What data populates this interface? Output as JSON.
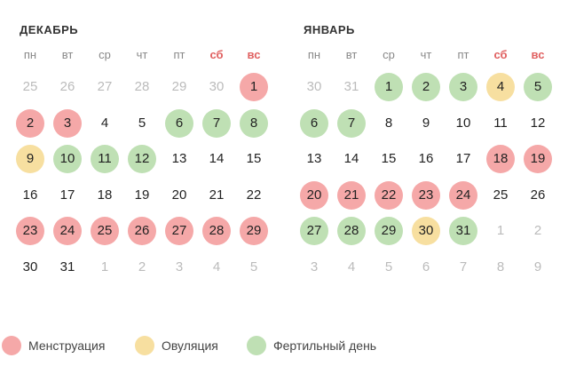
{
  "colors": {
    "menstruation": "#f5a8a8",
    "ovulation": "#f7dfa0",
    "fertile": "#bfe0b4",
    "weekend_text": "#e06060",
    "muted_text": "#bbbbbb"
  },
  "weekdays": [
    "пн",
    "вт",
    "ср",
    "чт",
    "пт",
    "сб",
    "вс"
  ],
  "months": [
    {
      "title": "ДЕКАБРЬ",
      "weeks": [
        [
          {
            "d": "25",
            "m": true
          },
          {
            "d": "26",
            "m": true
          },
          {
            "d": "27",
            "m": true
          },
          {
            "d": "28",
            "m": true
          },
          {
            "d": "29",
            "m": true
          },
          {
            "d": "30",
            "m": true
          },
          {
            "d": "1",
            "s": "menstruation"
          }
        ],
        [
          {
            "d": "2",
            "s": "menstruation"
          },
          {
            "d": "3",
            "s": "menstruation"
          },
          {
            "d": "4"
          },
          {
            "d": "5"
          },
          {
            "d": "6",
            "s": "fertile"
          },
          {
            "d": "7",
            "s": "fertile"
          },
          {
            "d": "8",
            "s": "fertile"
          }
        ],
        [
          {
            "d": "9",
            "s": "ovulation"
          },
          {
            "d": "10",
            "s": "fertile"
          },
          {
            "d": "11",
            "s": "fertile"
          },
          {
            "d": "12",
            "s": "fertile"
          },
          {
            "d": "13"
          },
          {
            "d": "14"
          },
          {
            "d": "15"
          }
        ],
        [
          {
            "d": "16"
          },
          {
            "d": "17"
          },
          {
            "d": "18"
          },
          {
            "d": "19"
          },
          {
            "d": "20"
          },
          {
            "d": "21"
          },
          {
            "d": "22"
          }
        ],
        [
          {
            "d": "23",
            "s": "menstruation"
          },
          {
            "d": "24",
            "s": "menstruation"
          },
          {
            "d": "25",
            "s": "menstruation"
          },
          {
            "d": "26",
            "s": "menstruation"
          },
          {
            "d": "27",
            "s": "menstruation"
          },
          {
            "d": "28",
            "s": "menstruation"
          },
          {
            "d": "29",
            "s": "menstruation"
          }
        ],
        [
          {
            "d": "30"
          },
          {
            "d": "31"
          },
          {
            "d": "1",
            "m": true
          },
          {
            "d": "2",
            "m": true
          },
          {
            "d": "3",
            "m": true
          },
          {
            "d": "4",
            "m": true
          },
          {
            "d": "5",
            "m": true
          }
        ]
      ]
    },
    {
      "title": "ЯНВАРЬ",
      "weeks": [
        [
          {
            "d": "30",
            "m": true
          },
          {
            "d": "31",
            "m": true
          },
          {
            "d": "1",
            "s": "fertile"
          },
          {
            "d": "2",
            "s": "fertile"
          },
          {
            "d": "3",
            "s": "fertile"
          },
          {
            "d": "4",
            "s": "ovulation"
          },
          {
            "d": "5",
            "s": "fertile"
          }
        ],
        [
          {
            "d": "6",
            "s": "fertile"
          },
          {
            "d": "7",
            "s": "fertile"
          },
          {
            "d": "8"
          },
          {
            "d": "9"
          },
          {
            "d": "10"
          },
          {
            "d": "11"
          },
          {
            "d": "12"
          }
        ],
        [
          {
            "d": "13"
          },
          {
            "d": "14"
          },
          {
            "d": "15"
          },
          {
            "d": "16"
          },
          {
            "d": "17"
          },
          {
            "d": "18",
            "s": "menstruation"
          },
          {
            "d": "19",
            "s": "menstruation"
          }
        ],
        [
          {
            "d": "20",
            "s": "menstruation"
          },
          {
            "d": "21",
            "s": "menstruation"
          },
          {
            "d": "22",
            "s": "menstruation"
          },
          {
            "d": "23",
            "s": "menstruation"
          },
          {
            "d": "24",
            "s": "menstruation"
          },
          {
            "d": "25"
          },
          {
            "d": "26"
          }
        ],
        [
          {
            "d": "27",
            "s": "fertile"
          },
          {
            "d": "28",
            "s": "fertile"
          },
          {
            "d": "29",
            "s": "fertile"
          },
          {
            "d": "30",
            "s": "ovulation"
          },
          {
            "d": "31",
            "s": "fertile"
          },
          {
            "d": "1",
            "m": true
          },
          {
            "d": "2",
            "m": true
          }
        ],
        [
          {
            "d": "3",
            "m": true
          },
          {
            "d": "4",
            "m": true
          },
          {
            "d": "5",
            "m": true
          },
          {
            "d": "6",
            "m": true
          },
          {
            "d": "7",
            "m": true
          },
          {
            "d": "8",
            "m": true
          },
          {
            "d": "9",
            "m": true
          }
        ]
      ]
    }
  ],
  "legend": [
    {
      "key": "menstruation",
      "label": "Менструация"
    },
    {
      "key": "ovulation",
      "label": "Овуляция"
    },
    {
      "key": "fertile",
      "label": "Фертильный день"
    }
  ]
}
